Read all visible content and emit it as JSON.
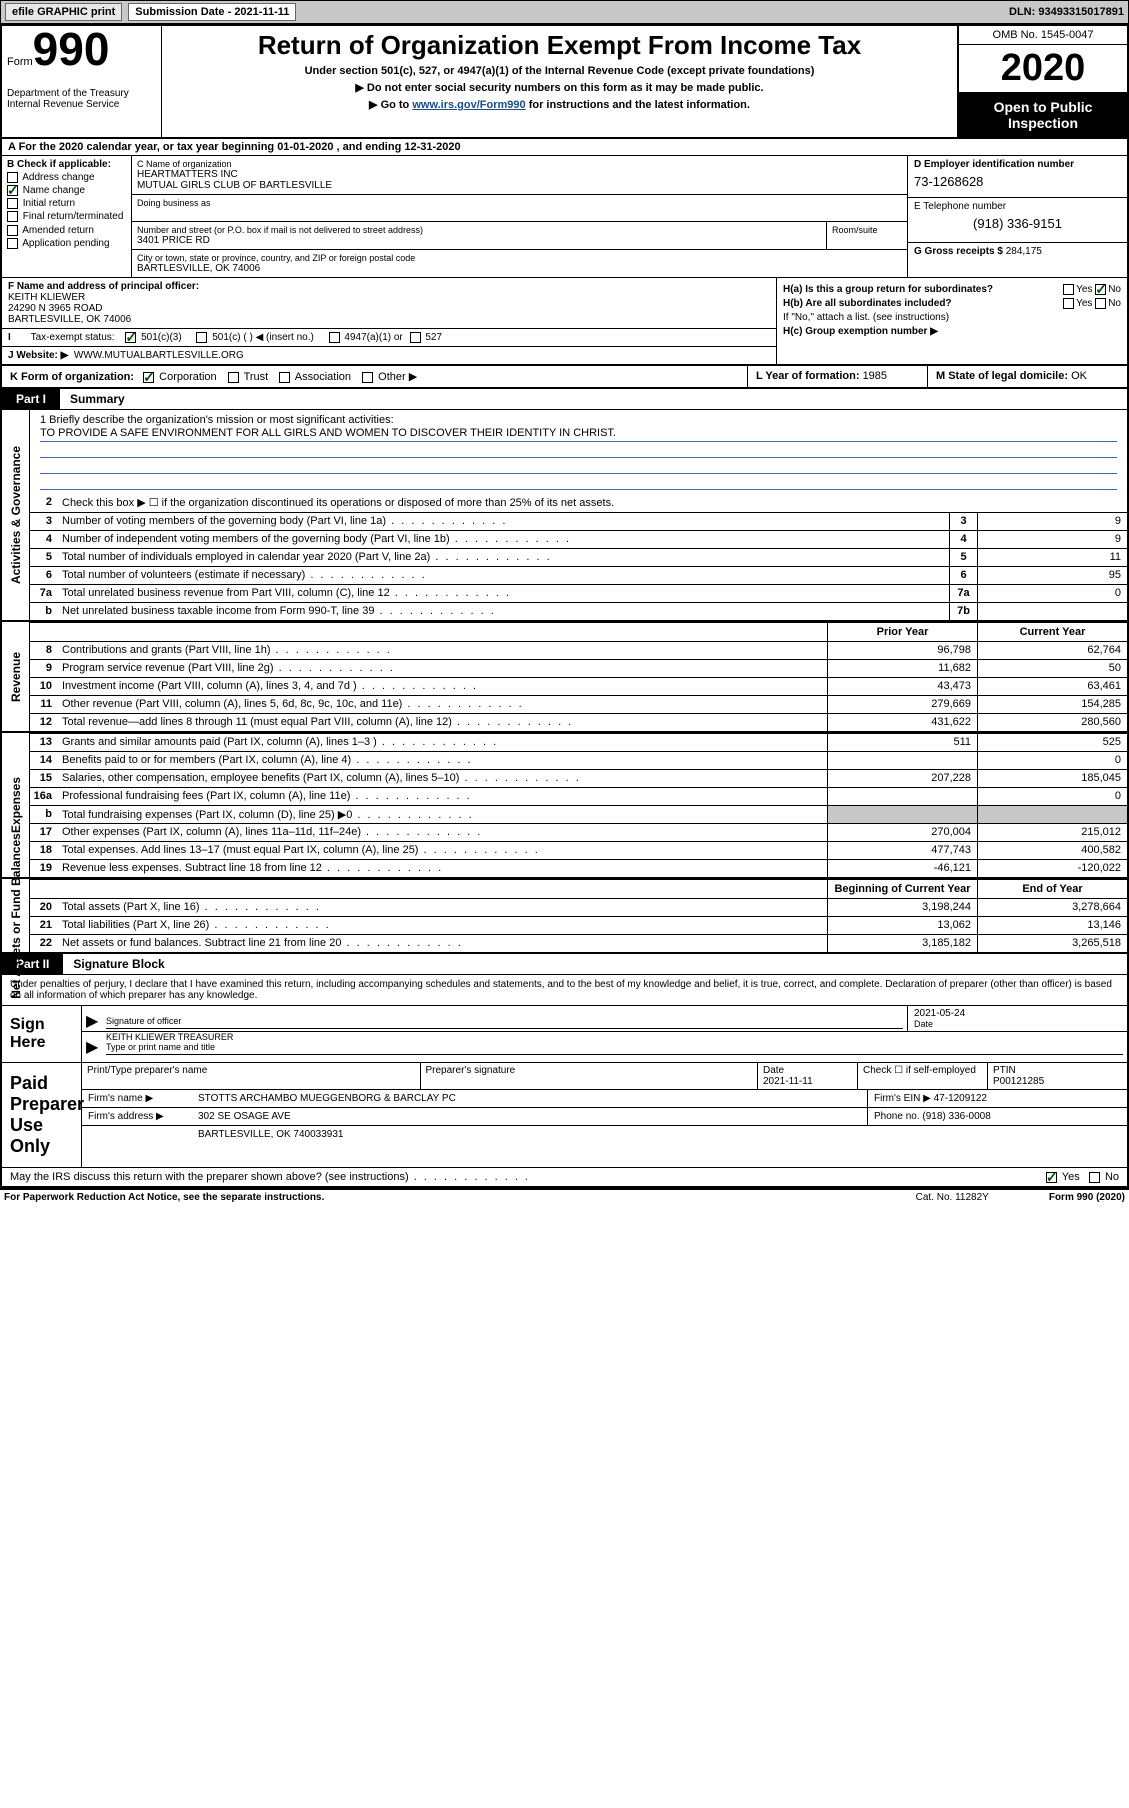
{
  "colors": {
    "topbar_bg": "#c8c8c8",
    "black": "#000000",
    "link": "#1a4b8a",
    "graycell": "#c8c8c8",
    "check_green": "#0a4b0a",
    "rule_blue": "#3a6bb0"
  },
  "topbar": {
    "efile": "efile GRAPHIC print",
    "sub_label": "Submission Date - 2021-11-11",
    "dln": "DLN: 93493315017891"
  },
  "header": {
    "form_word": "Form",
    "form_num": "990",
    "dept1": "Department of the Treasury",
    "dept2": "Internal Revenue Service",
    "title": "Return of Organization Exempt From Income Tax",
    "sub": "Under section 501(c), 527, or 4947(a)(1) of the Internal Revenue Code (except private foundations)",
    "line1": "▶ Do not enter social security numbers on this form as it may be made public.",
    "line2_pre": "▶ Go to ",
    "line2_link": "www.irs.gov/Form990",
    "line2_post": " for instructions and the latest information.",
    "omb": "OMB No. 1545-0047",
    "year": "2020",
    "open": "Open to Public Inspection"
  },
  "period": "A For the 2020 calendar year, or tax year beginning 01-01-2020    , and ending 12-31-2020",
  "sectionB": {
    "label": "B Check if applicable:",
    "opts": [
      "Address change",
      "Name change",
      "Initial return",
      "Final return/terminated",
      "Amended return",
      "Application pending"
    ],
    "checked_index": 1
  },
  "sectionC": {
    "label": "C Name of organization",
    "name1": "HEARTMATTERS INC",
    "name2": "MUTUAL GIRLS CLUB OF BARTLESVILLE",
    "dba_label": "Doing business as",
    "street_label": "Number and street (or P.O. box if mail is not delivered to street address)",
    "room_label": "Room/suite",
    "street": "3401 PRICE RD",
    "city_label": "City or town, state or province, country, and ZIP or foreign postal code",
    "city": "BARTLESVILLE, OK  74006"
  },
  "sectionD": {
    "label": "D Employer identification number",
    "ein": "73-1268628"
  },
  "sectionE": {
    "label": "E Telephone number",
    "phone": "(918) 336-9151"
  },
  "sectionG": {
    "label": "G Gross receipts $ ",
    "value": "284,175"
  },
  "sectionF": {
    "label": "F Name and address of principal officer:",
    "name": "KEITH KLIEWER",
    "addr1": "24290 N 3965 ROAD",
    "addr2": "BARTLESVILLE, OK  74006"
  },
  "sectionH": {
    "a": "H(a)  Is this a group return for subordinates?",
    "a_yes": "Yes",
    "a_no": "No",
    "b": "H(b)  Are all subordinates included?",
    "b_note": "If \"No,\" attach a list. (see instructions)",
    "c": "H(c)  Group exemption number ▶"
  },
  "taxExempt": {
    "label": "Tax-exempt status:",
    "opt1": "501(c)(3)",
    "opt2": "501(c) (   ) ◀ (insert no.)",
    "opt3": "4947(a)(1) or",
    "opt4": "527"
  },
  "sectionJ": {
    "label": "J    Website: ▶",
    "value": "WWW.MUTUALBARTLESVILLE.ORG"
  },
  "sectionK": {
    "label": "K Form of organization:",
    "opts": [
      "Corporation",
      "Trust",
      "Association",
      "Other ▶"
    ]
  },
  "sectionL": {
    "label": "L Year of formation: ",
    "value": "1985"
  },
  "sectionM": {
    "label": "M State of legal domicile: ",
    "value": "OK"
  },
  "part1": {
    "tag": "Part I",
    "title": "Summary"
  },
  "mission": {
    "prompt": "1   Briefly describe the organization's mission or most significant activities:",
    "text": "TO PROVIDE A SAFE ENVIRONMENT FOR ALL GIRLS AND WOMEN TO DISCOVER THEIR IDENTITY IN CHRIST."
  },
  "governance": {
    "side": "Activities & Governance",
    "l2": "Check this box ▶ ☐  if the organization discontinued its operations or disposed of more than 25% of its net assets.",
    "rows": [
      {
        "n": "3",
        "t": "Number of voting members of the governing body (Part VI, line 1a)",
        "box": "3",
        "v": "9"
      },
      {
        "n": "4",
        "t": "Number of independent voting members of the governing body (Part VI, line 1b)",
        "box": "4",
        "v": "9"
      },
      {
        "n": "5",
        "t": "Total number of individuals employed in calendar year 2020 (Part V, line 2a)",
        "box": "5",
        "v": "11"
      },
      {
        "n": "6",
        "t": "Total number of volunteers (estimate if necessary)",
        "box": "6",
        "v": "95"
      },
      {
        "n": "7a",
        "t": "Total unrelated business revenue from Part VIII, column (C), line 12",
        "box": "7a",
        "v": "0"
      },
      {
        "n": "b",
        "t": "Net unrelated business taxable income from Form 990-T, line 39",
        "box": "7b",
        "v": ""
      }
    ]
  },
  "twocol": {
    "prior": "Prior Year",
    "current": "Current Year"
  },
  "revenue": {
    "side": "Revenue",
    "rows": [
      {
        "n": "8",
        "t": "Contributions and grants (Part VIII, line 1h)",
        "p": "96,798",
        "c": "62,764"
      },
      {
        "n": "9",
        "t": "Program service revenue (Part VIII, line 2g)",
        "p": "11,682",
        "c": "50"
      },
      {
        "n": "10",
        "t": "Investment income (Part VIII, column (A), lines 3, 4, and 7d )",
        "p": "43,473",
        "c": "63,461"
      },
      {
        "n": "11",
        "t": "Other revenue (Part VIII, column (A), lines 5, 6d, 8c, 9c, 10c, and 11e)",
        "p": "279,669",
        "c": "154,285"
      },
      {
        "n": "12",
        "t": "Total revenue—add lines 8 through 11 (must equal Part VIII, column (A), line 12)",
        "p": "431,622",
        "c": "280,560"
      }
    ]
  },
  "expenses": {
    "side": "Expenses",
    "rows": [
      {
        "n": "13",
        "t": "Grants and similar amounts paid (Part IX, column (A), lines 1–3 )",
        "p": "511",
        "c": "525"
      },
      {
        "n": "14",
        "t": "Benefits paid to or for members (Part IX, column (A), line 4)",
        "p": "",
        "c": "0"
      },
      {
        "n": "15",
        "t": "Salaries, other compensation, employee benefits (Part IX, column (A), lines 5–10)",
        "p": "207,228",
        "c": "185,045"
      },
      {
        "n": "16a",
        "t": "Professional fundraising fees (Part IX, column (A), line 11e)",
        "p": "",
        "c": "0"
      },
      {
        "n": "b",
        "t": "Total fundraising expenses (Part IX, column (D), line 25) ▶0",
        "p": "GRAY",
        "c": "GRAY"
      },
      {
        "n": "17",
        "t": "Other expenses (Part IX, column (A), lines 11a–11d, 11f–24e)",
        "p": "270,004",
        "c": "215,012"
      },
      {
        "n": "18",
        "t": "Total expenses. Add lines 13–17 (must equal Part IX, column (A), line 25)",
        "p": "477,743",
        "c": "400,582"
      },
      {
        "n": "19",
        "t": "Revenue less expenses. Subtract line 18 from line 12",
        "p": "-46,121",
        "c": "-120,022"
      }
    ]
  },
  "netassets": {
    "side": "Net Assets or Fund Balances",
    "header": {
      "prior": "Beginning of Current Year",
      "current": "End of Year"
    },
    "rows": [
      {
        "n": "20",
        "t": "Total assets (Part X, line 16)",
        "p": "3,198,244",
        "c": "3,278,664"
      },
      {
        "n": "21",
        "t": "Total liabilities (Part X, line 26)",
        "p": "13,062",
        "c": "13,146"
      },
      {
        "n": "22",
        "t": "Net assets or fund balances. Subtract line 21 from line 20",
        "p": "3,185,182",
        "c": "3,265,518"
      }
    ]
  },
  "part2": {
    "tag": "Part II",
    "title": "Signature Block"
  },
  "sig": {
    "intro": "Under penalties of perjury, I declare that I have examined this return, including accompanying schedules and statements, and to the best of my knowledge and belief, it is true, correct, and complete. Declaration of preparer (other than officer) is based on all information of which preparer has any knowledge.",
    "here": "Sign Here",
    "officer_sig": "Signature of officer",
    "officer_date": "2021-05-24",
    "date_label": "Date",
    "officer_name": "KEITH KLIEWER  TREASURER",
    "type_label": "Type or print name and title"
  },
  "paid": {
    "label": "Paid Preparer Use Only",
    "h1": "Print/Type preparer's name",
    "h2": "Preparer's signature",
    "h3": "Date",
    "h3v": "2021-11-11",
    "h4": "Check ☐ if self-employed",
    "h5": "PTIN",
    "h5v": "P00121285",
    "firm_name_label": "Firm's name     ▶",
    "firm_name": "STOTTS ARCHAMBO MUEGGENBORG & BARCLAY PC",
    "firm_ein_label": "Firm's EIN ▶",
    "firm_ein": "47-1209122",
    "firm_addr_label": "Firm's address ▶",
    "firm_addr1": "302 SE OSAGE AVE",
    "firm_addr2": "BARTLESVILLE, OK  740033931",
    "phone_label": "Phone no.",
    "phone": "(918) 336-0008"
  },
  "discuss": {
    "q": "May the IRS discuss this return with the preparer shown above? (see instructions)",
    "yes": "Yes",
    "no": "No"
  },
  "footer": {
    "left": "For Paperwork Reduction Act Notice, see the separate instructions.",
    "mid": "Cat. No. 11282Y",
    "right": "Form 990 (2020)"
  }
}
